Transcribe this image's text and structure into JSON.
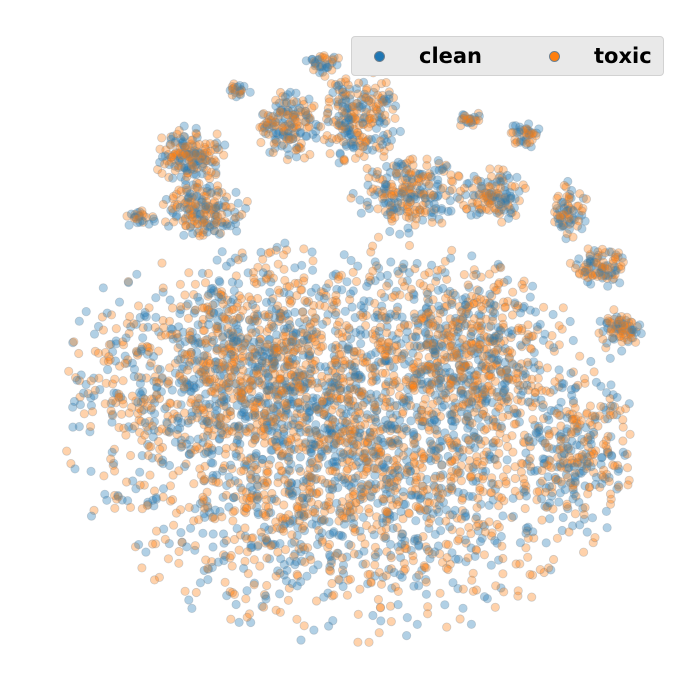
{
  "chart_data": {
    "type": "scatter",
    "title": "",
    "xlabel": "",
    "ylabel": "",
    "axes_visible": false,
    "grid": false,
    "legend": {
      "placement": "top-right",
      "columns": 2
    },
    "series": [
      {
        "name": "clean",
        "color": "#1f77b4",
        "edgecolor": "#7f8c99",
        "alpha": 0.35
      },
      {
        "name": "toxic",
        "color": "#ff7f0e",
        "edgecolor": "#7f8c99",
        "alpha": 0.35
      }
    ],
    "xlim": [
      -1,
      1
    ],
    "ylim": [
      -1,
      1
    ]
  }
}
